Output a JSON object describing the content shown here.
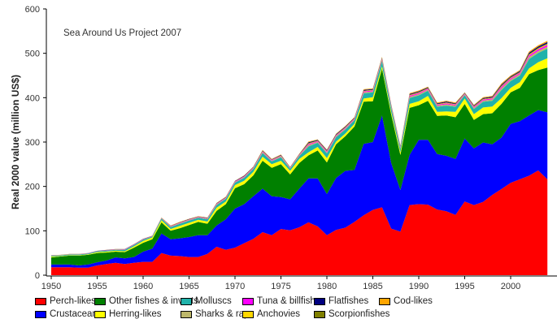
{
  "chart_data": {
    "type": "area",
    "stacked": true,
    "title": "Sea Around Us Project 2007",
    "xlabel": "",
    "ylabel": "Real 2000 value (million US$)",
    "xlim": [
      1950,
      2004
    ],
    "ylim": [
      0,
      600
    ],
    "grid": false,
    "legend_position": "bottom",
    "x_ticks": [
      "1950",
      "1955",
      "1960",
      "1965",
      "1970",
      "1975",
      "1980",
      "1985",
      "1990",
      "1995",
      "2000"
    ],
    "y_ticks": [
      "0",
      "100",
      "200",
      "300",
      "400",
      "500",
      "600"
    ],
    "x": [
      1950,
      1951,
      1952,
      1953,
      1954,
      1955,
      1956,
      1957,
      1958,
      1959,
      1960,
      1961,
      1962,
      1963,
      1964,
      1965,
      1966,
      1967,
      1968,
      1969,
      1970,
      1971,
      1972,
      1973,
      1974,
      1975,
      1976,
      1977,
      1978,
      1979,
      1980,
      1981,
      1982,
      1983,
      1984,
      1985,
      1986,
      1987,
      1988,
      1989,
      1990,
      1991,
      1992,
      1993,
      1994,
      1995,
      1996,
      1997,
      1998,
      1999,
      2000,
      2001,
      2002,
      2003,
      2004
    ],
    "series": [
      {
        "name": "Perch-likes",
        "color": "#ff0000",
        "values": [
          18,
          18,
          18,
          17,
          17,
          22,
          25,
          28,
          25,
          28,
          30,
          30,
          50,
          44,
          43,
          41,
          41,
          48,
          64,
          57,
          62,
          72,
          82,
          97,
          90,
          104,
          101,
          108,
          119,
          110,
          90,
          102,
          107,
          120,
          135,
          147,
          153,
          105,
          98,
          158,
          160,
          159,
          148,
          144,
          136,
          166,
          158,
          165,
          181,
          194,
          208,
          216,
          224,
          236,
          216
        ]
      },
      {
        "name": "Crustaceans",
        "color": "#0000ff",
        "values": [
          6,
          6,
          6,
          5,
          7,
          7,
          8,
          12,
          13,
          13,
          23,
          30,
          44,
          37,
          40,
          45,
          49,
          42,
          48,
          69,
          88,
          88,
          96,
          98,
          88,
          72,
          70,
          87,
          99,
          108,
          93,
          117,
          128,
          117,
          161,
          153,
          207,
          148,
          94,
          113,
          145,
          146,
          125,
          125,
          126,
          142,
          128,
          134,
          114,
          116,
          133,
          131,
          136,
          136,
          151
        ]
      },
      {
        "name": "Other fishes & inverts",
        "color": "#008000",
        "values": [
          16,
          18,
          20,
          22,
          22,
          21,
          18,
          13,
          14,
          21,
          20,
          21,
          25,
          19,
          23,
          27,
          30,
          26,
          33,
          34,
          46,
          45,
          47,
          63,
          64,
          74,
          56,
          58,
          52,
          63,
          71,
          76,
          78,
          98,
          95,
          92,
          105,
          109,
          79,
          106,
          78,
          88,
          86,
          91,
          94,
          78,
          64,
          64,
          70,
          76,
          71,
          75,
          93,
          90,
          101
        ]
      },
      {
        "name": "Herring-likes",
        "color": "#ffff00",
        "values": [
          2,
          1,
          1,
          1,
          1,
          2,
          2,
          2,
          2,
          3,
          4,
          4,
          5,
          4,
          5,
          5,
          5,
          5,
          7,
          6,
          7,
          8,
          8,
          9,
          8,
          8,
          8,
          9,
          7,
          8,
          10,
          6,
          6,
          6,
          7,
          9,
          6,
          6,
          6,
          9,
          9,
          11,
          9,
          9,
          12,
          12,
          13,
          15,
          15,
          13,
          10,
          13,
          13,
          18,
          21
        ]
      },
      {
        "name": "Molluscs",
        "color": "#20b2aa",
        "values": [
          1.7,
          1.7,
          1.7,
          1.7,
          1.7,
          1.7,
          2.2,
          2.2,
          2.8,
          2.8,
          2.8,
          2.2,
          3.3,
          4.4,
          5.0,
          5.0,
          4.4,
          5.0,
          6.1,
          6.1,
          5.5,
          6.6,
          6.6,
          8.3,
          6.6,
          7.7,
          5.0,
          6.6,
          13.2,
          9.4,
          10.5,
          9.9,
          9.4,
          8.3,
          11.6,
          11,
          11.6,
          9.9,
          8.3,
          13.2,
          13.2,
          11.6,
          11.6,
          13.2,
          11.6,
          7.7,
          11.6,
          12.7,
          13.2,
          18.2,
          15.4,
          14.9,
          20.9,
          20.9,
          21.5
        ]
      },
      {
        "name": "Sharks & rays",
        "color": "#bdb76b",
        "values": [
          0.4,
          0.4,
          0.4,
          0.4,
          0.4,
          0.4,
          0.5,
          0.5,
          0.6,
          0.6,
          0.6,
          0.5,
          0.7,
          1.0,
          1.1,
          1.1,
          1.0,
          1.1,
          1.3,
          1.3,
          1.2,
          1.4,
          1.4,
          1.8,
          1.4,
          1.7,
          1.1,
          1.4,
          2.9,
          2.0,
          2.3,
          2.2,
          2.0,
          1.8,
          2.5,
          2.4,
          2.5,
          2.2,
          1.8,
          2.9,
          2.9,
          2.5,
          2.5,
          2.9,
          2.5,
          1.7,
          2.5,
          2.8,
          2.9,
          4.0,
          3.4,
          3.2,
          4.6,
          4.6,
          4.7
        ]
      },
      {
        "name": "Tuna & billfishes",
        "color": "#ff00ff",
        "values": [
          0.3,
          0.3,
          0.3,
          0.3,
          0.3,
          0.3,
          0.4,
          0.4,
          0.5,
          0.5,
          0.5,
          0.4,
          0.6,
          0.8,
          0.9,
          0.9,
          0.8,
          0.9,
          1.1,
          1.1,
          1.0,
          1.2,
          1.2,
          1.5,
          1.2,
          1.4,
          0.9,
          1.2,
          2.4,
          1.7,
          1.9,
          1.8,
          1.7,
          1.5,
          2.1,
          2.0,
          2.1,
          1.8,
          1.5,
          2.4,
          2.4,
          2.1,
          2.1,
          2.4,
          2.1,
          1.4,
          2.1,
          2.3,
          2.4,
          3.3,
          2.8,
          2.7,
          3.8,
          3.8,
          3.9
        ]
      },
      {
        "name": "Anchovies",
        "color": "#ffd700",
        "values": [
          0.1,
          0.1,
          0.1,
          0.1,
          0.1,
          0.1,
          0.2,
          0.2,
          0.2,
          0.2,
          0.2,
          0.2,
          0.2,
          0.3,
          0.4,
          0.4,
          0.3,
          0.4,
          0.4,
          0.4,
          0.4,
          0.5,
          0.5,
          0.6,
          0.5,
          0.6,
          0.4,
          0.5,
          1.0,
          0.7,
          0.8,
          0.7,
          0.7,
          0.6,
          0.8,
          0.8,
          0.8,
          0.7,
          0.6,
          1.0,
          1.0,
          0.8,
          0.8,
          1.0,
          0.8,
          0.6,
          0.8,
          0.9,
          1.0,
          1.3,
          1.1,
          1.1,
          1.5,
          1.5,
          1.6
        ]
      },
      {
        "name": "Scorpionfishes",
        "color": "#808000",
        "values": [
          0.1,
          0.1,
          0.1,
          0.1,
          0.1,
          0.1,
          0.2,
          0.2,
          0.2,
          0.2,
          0.2,
          0.2,
          0.2,
          0.3,
          0.4,
          0.4,
          0.3,
          0.4,
          0.4,
          0.4,
          0.4,
          0.5,
          0.5,
          0.6,
          0.5,
          0.6,
          0.4,
          0.5,
          1.0,
          0.7,
          0.8,
          0.7,
          0.7,
          0.6,
          0.8,
          0.8,
          0.8,
          0.7,
          0.6,
          1.0,
          1.0,
          0.8,
          0.8,
          1.0,
          0.8,
          0.6,
          0.8,
          0.9,
          1.0,
          1.3,
          1.1,
          1.1,
          1.5,
          1.5,
          1.6
        ]
      },
      {
        "name": "Flatfishes",
        "color": "#000080",
        "values": [
          0.2,
          0.2,
          0.2,
          0.2,
          0.2,
          0.2,
          0.3,
          0.3,
          0.4,
          0.4,
          0.4,
          0.3,
          0.5,
          0.6,
          0.7,
          0.7,
          0.6,
          0.7,
          0.9,
          0.9,
          0.8,
          1.0,
          1.0,
          1.2,
          1.0,
          1.1,
          0.7,
          1.0,
          1.9,
          1.4,
          1.5,
          1.4,
          1.4,
          1.2,
          1.7,
          1.6,
          1.7,
          1.4,
          1.2,
          1.9,
          1.9,
          1.7,
          1.7,
          1.9,
          1.7,
          1.1,
          1.7,
          1.8,
          1.9,
          2.6,
          2.2,
          2.2,
          3.0,
          3.0,
          3.1
        ]
      },
      {
        "name": "Cod-likes",
        "color": "#ffa500",
        "values": [
          0.2,
          0.2,
          0.2,
          0.2,
          0.2,
          0.2,
          0.3,
          0.3,
          0.4,
          0.4,
          0.4,
          0.3,
          0.4,
          0.6,
          0.6,
          0.6,
          0.6,
          0.6,
          0.8,
          0.8,
          0.7,
          0.8,
          0.8,
          1.1,
          0.8,
          1.0,
          0.6,
          0.8,
          1.7,
          1.2,
          1.3,
          1.3,
          1.2,
          1.1,
          1.5,
          1.4,
          1.5,
          1.3,
          1.1,
          1.7,
          1.7,
          1.5,
          1.5,
          1.7,
          1.5,
          1.0,
          1.5,
          1.6,
          1.7,
          2.3,
          2.0,
          1.9,
          2.7,
          2.7,
          2.7
        ]
      }
    ],
    "legend": [
      {
        "label": "Perch-likes",
        "color": "#ff0000"
      },
      {
        "label": "Other fishes & inverts",
        "color": "#008000"
      },
      {
        "label": "Molluscs",
        "color": "#20b2aa"
      },
      {
        "label": "Tuna & billfishes",
        "color": "#ff00ff"
      },
      {
        "label": "Flatfishes",
        "color": "#000080"
      },
      {
        "label": "Cod-likes",
        "color": "#ffa500"
      },
      {
        "label": "Crustaceans",
        "color": "#0000ff"
      },
      {
        "label": "Herring-likes",
        "color": "#ffff00"
      },
      {
        "label": "Sharks & rays",
        "color": "#bdb76b"
      },
      {
        "label": "Anchovies",
        "color": "#ffd700"
      },
      {
        "label": "Scorpionfishes",
        "color": "#808000"
      }
    ]
  }
}
